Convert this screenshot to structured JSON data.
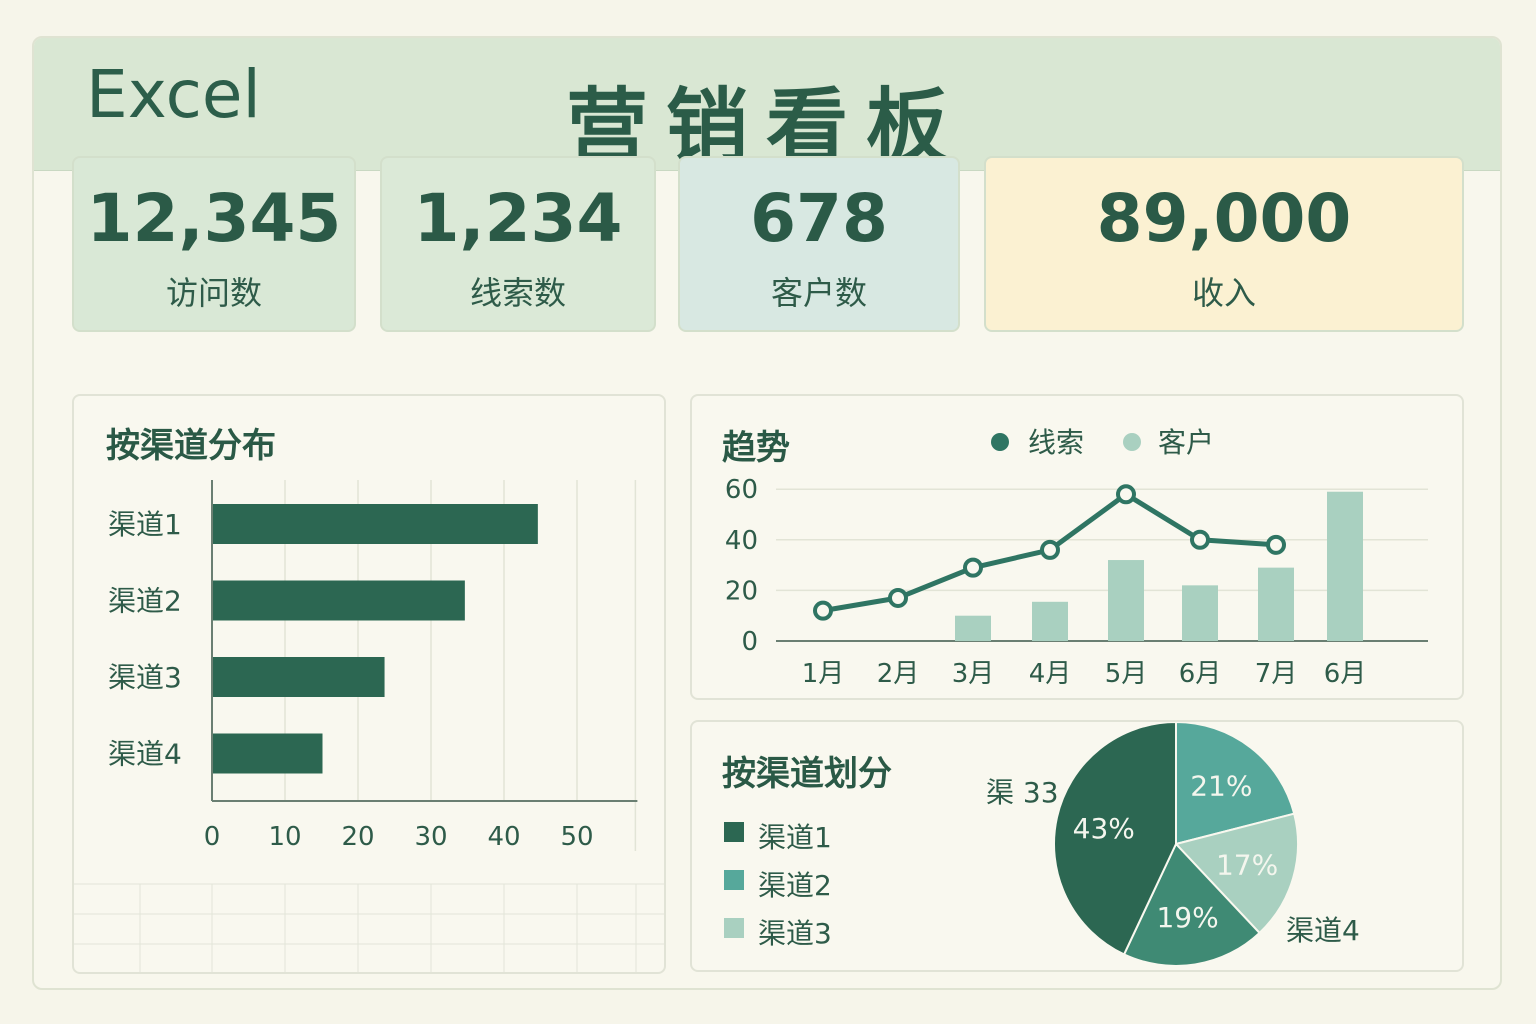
{
  "header": {
    "app_title": "Excel",
    "board_title": "营销看板"
  },
  "kpis": [
    {
      "value": "12,345",
      "label": "访问数",
      "bg": "#d9e8d6"
    },
    {
      "value": "1,234",
      "label": "线索数",
      "bg": "#dbe9d7"
    },
    {
      "value": "678",
      "label": "客户数",
      "bg": "#d8e8e2"
    },
    {
      "value": "89,000",
      "label": "收入",
      "bg": "#fbf1d2"
    }
  ],
  "bar_panel": {
    "title": "按渠道分布"
  },
  "trend_panel": {
    "title": "趋势"
  },
  "pie_panel": {
    "title": "按渠道划分"
  },
  "colors": {
    "dark": "#2c6752",
    "mid": "#56a89b",
    "light": "#a9d0c0",
    "mid2": "#3f8a74"
  },
  "chart_data": [
    {
      "type": "bar",
      "orientation": "horizontal",
      "title": "按渠道分布",
      "categories": [
        "渠道1",
        "渠道2",
        "渠道3",
        "渠道4"
      ],
      "values": [
        44.5,
        34.5,
        23.5,
        15
      ],
      "xticks": [
        "0",
        "10",
        "20",
        "30",
        "40",
        "50"
      ],
      "xlim": [
        0,
        58
      ],
      "grid": true
    },
    {
      "type": "line",
      "title": "趋势",
      "categories": [
        "1月",
        "2月",
        "3月",
        "4月",
        "5月",
        "6月",
        "7月",
        "6月"
      ],
      "yticks": [
        "0",
        "20",
        "40",
        "60"
      ],
      "ylim": [
        0,
        60
      ],
      "legend_position": "top",
      "series": [
        {
          "name": "线索",
          "type": "line",
          "values": [
            12,
            17,
            29,
            36,
            58,
            40,
            38,
            null
          ]
        },
        {
          "name": "客户",
          "type": "bar",
          "values": [
            null,
            null,
            10,
            15.5,
            32,
            22,
            29,
            59
          ]
        }
      ]
    },
    {
      "type": "pie",
      "title": "按渠道划分",
      "legend": [
        "渠道1",
        "渠道2",
        "渠道3"
      ],
      "slices": [
        {
          "label": "43%",
          "value": 43
        },
        {
          "label": "21%",
          "value": 21
        },
        {
          "label": "17%",
          "value": 17
        },
        {
          "label": "19%",
          "value": 19
        }
      ],
      "outer_labels": [
        "渠 33",
        "渠道4"
      ]
    }
  ]
}
